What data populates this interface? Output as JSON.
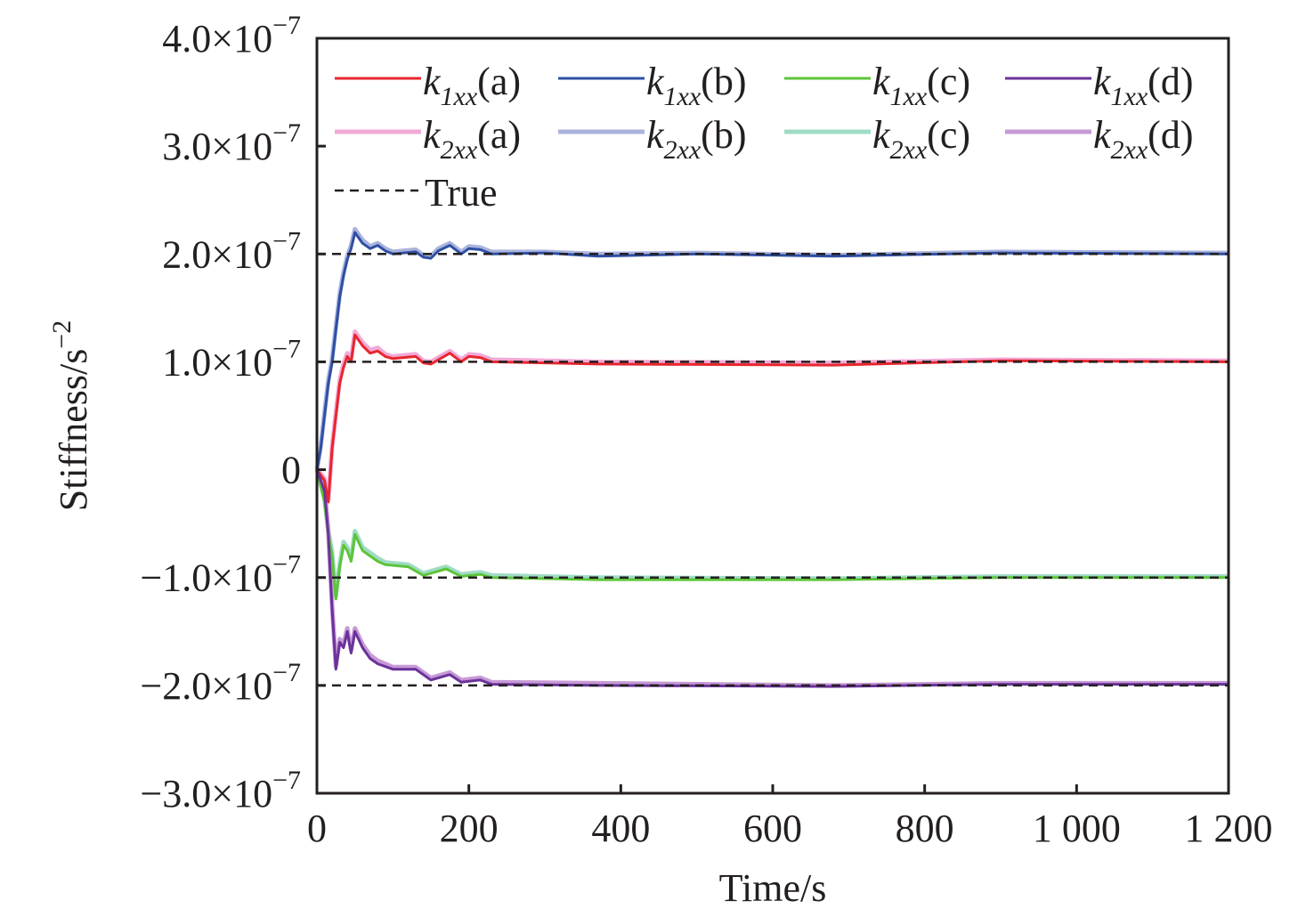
{
  "chart_data": {
    "type": "line",
    "xlabel": "Time/s",
    "ylabel": {
      "text": "Stiffness/s",
      "sup": "−2"
    },
    "xlim": [
      0,
      1200
    ],
    "ylim": [
      -3e-07,
      4e-07
    ],
    "grid": false,
    "legend_placement": "top",
    "x_ticks": [
      {
        "value": 0,
        "label": "0"
      },
      {
        "value": 200,
        "label": "200"
      },
      {
        "value": 400,
        "label": "400"
      },
      {
        "value": 600,
        "label": "600"
      },
      {
        "value": 800,
        "label": "800"
      },
      {
        "value": 1000,
        "label": "1 000"
      },
      {
        "value": 1200,
        "label": "1 200"
      }
    ],
    "y_ticks": [
      {
        "value": 4e-07,
        "mantissa": "4.0×10",
        "exp": "−7"
      },
      {
        "value": 3e-07,
        "mantissa": "3.0×10",
        "exp": "−7"
      },
      {
        "value": 2e-07,
        "mantissa": "2.0×10",
        "exp": "−7"
      },
      {
        "value": 1e-07,
        "mantissa": "1.0×10",
        "exp": "−7"
      },
      {
        "value": 0,
        "mantissa": "0",
        "exp": ""
      },
      {
        "value": -1e-07,
        "mantissa": "−1.0×10",
        "exp": "−7"
      },
      {
        "value": -2e-07,
        "mantissa": "−2.0×10",
        "exp": "−7"
      },
      {
        "value": -3e-07,
        "mantissa": "−3.0×10",
        "exp": "−7"
      }
    ],
    "series": [
      {
        "name": "k1xx(a)",
        "label": {
          "k": "k",
          "sub": "1xx",
          "arg": "(a)"
        },
        "color": "#e8262e",
        "width": 3,
        "x": [
          0,
          10,
          15,
          20,
          25,
          30,
          35,
          40,
          45,
          50,
          55,
          60,
          70,
          80,
          90,
          100,
          130,
          140,
          150,
          175,
          190,
          200,
          215,
          230,
          370,
          680,
          900,
          1200
        ],
        "y": [
          0,
          -1e-08,
          -3e-08,
          2e-08,
          5e-08,
          8e-08,
          9.5e-08,
          1.05e-07,
          1e-07,
          1.25e-07,
          1.2e-07,
          1.15e-07,
          1.08e-07,
          1.1e-07,
          1.05e-07,
          1.03e-07,
          1.05e-07,
          9.9e-08,
          9.8e-08,
          1.08e-07,
          1e-07,
          1.05e-07,
          1.04e-07,
          1e-07,
          9.8e-08,
          9.7e-08,
          1.01e-07,
          1e-07
        ]
      },
      {
        "name": "k1xx(b)",
        "label": {
          "k": "k",
          "sub": "1xx",
          "arg": "(b)"
        },
        "color": "#2e4fa3",
        "width": 3,
        "x": [
          0,
          5,
          10,
          15,
          20,
          25,
          30,
          35,
          40,
          45,
          50,
          55,
          60,
          70,
          80,
          90,
          100,
          130,
          140,
          150,
          160,
          175,
          190,
          200,
          215,
          230,
          300,
          370,
          500,
          680,
          900,
          1200
        ],
        "y": [
          0,
          2e-08,
          5e-08,
          8e-08,
          1e-07,
          1.3e-07,
          1.6e-07,
          1.8e-07,
          1.95e-07,
          2.05e-07,
          2.2e-07,
          2.15e-07,
          2.1e-07,
          2.05e-07,
          2.08e-07,
          2.03e-07,
          2e-07,
          2.02e-07,
          1.97e-07,
          1.96e-07,
          2.03e-07,
          2.08e-07,
          2e-07,
          2.05e-07,
          2.04e-07,
          2e-07,
          2.01e-07,
          1.98e-07,
          2e-07,
          1.98e-07,
          2.01e-07,
          2e-07
        ]
      },
      {
        "name": "k1xx(c)",
        "label": {
          "k": "k",
          "sub": "1xx",
          "arg": "(c)"
        },
        "color": "#5ec43a",
        "width": 3,
        "x": [
          0,
          10,
          15,
          20,
          25,
          30,
          35,
          40,
          45,
          50,
          60,
          70,
          80,
          90,
          120,
          140,
          170,
          190,
          215,
          230,
          370,
          680,
          900,
          1200
        ],
        "y": [
          0,
          -3e-08,
          -6e-08,
          -8e-08,
          -1.2e-07,
          -9e-08,
          -7e-08,
          -7.5e-08,
          -8.5e-08,
          -6e-08,
          -7.5e-08,
          -8e-08,
          -8.5e-08,
          -8.8e-08,
          -9e-08,
          -9.8e-08,
          -9.2e-08,
          -9.9e-08,
          -9.7e-08,
          -1e-07,
          -1.02e-07,
          -1.02e-07,
          -1e-07,
          -1e-07
        ]
      },
      {
        "name": "k1xx(d)",
        "label": {
          "k": "k",
          "sub": "1xx",
          "arg": "(d)"
        },
        "color": "#6a3399",
        "width": 3,
        "x": [
          0,
          10,
          15,
          20,
          25,
          30,
          35,
          40,
          45,
          50,
          60,
          70,
          80,
          100,
          130,
          150,
          175,
          190,
          215,
          230,
          370,
          680,
          900,
          1200
        ],
        "y": [
          0,
          -2e-08,
          -6e-08,
          -1.3e-07,
          -1.85e-07,
          -1.6e-07,
          -1.65e-07,
          -1.5e-07,
          -1.7e-07,
          -1.5e-07,
          -1.65e-07,
          -1.75e-07,
          -1.8e-07,
          -1.85e-07,
          -1.85e-07,
          -1.95e-07,
          -1.9e-07,
          -1.97e-07,
          -1.95e-07,
          -1.99e-07,
          -2e-07,
          -2.01e-07,
          -1.99e-07,
          -1.99e-07
        ]
      },
      {
        "name": "k2xx(a)",
        "label": {
          "k": "k",
          "sub": "2xx",
          "arg": "(a)"
        },
        "color": "#f2a9d6",
        "width": 5,
        "x": [
          0,
          10,
          15,
          20,
          25,
          30,
          35,
          40,
          45,
          50,
          55,
          60,
          70,
          80,
          90,
          100,
          130,
          140,
          150,
          175,
          190,
          200,
          215,
          230,
          370,
          680,
          900,
          1200
        ],
        "y": [
          0,
          -8e-09,
          -2.8e-08,
          2.2e-08,
          5.3e-08,
          8.3e-08,
          9.8e-08,
          1.08e-07,
          1.03e-07,
          1.28e-07,
          1.23e-07,
          1.18e-07,
          1.11e-07,
          1.13e-07,
          1.07e-07,
          1.05e-07,
          1.07e-07,
          1.01e-07,
          1e-07,
          1.1e-07,
          1.02e-07,
          1.07e-07,
          1.06e-07,
          1.02e-07,
          1e-07,
          9.9e-08,
          1.02e-07,
          1.01e-07
        ]
      },
      {
        "name": "k2xx(b)",
        "label": {
          "k": "k",
          "sub": "2xx",
          "arg": "(b)"
        },
        "color": "#aab3dd",
        "width": 5,
        "x": [
          0,
          5,
          10,
          15,
          20,
          25,
          30,
          35,
          40,
          45,
          50,
          55,
          60,
          70,
          80,
          90,
          100,
          130,
          140,
          150,
          160,
          175,
          190,
          200,
          215,
          230,
          300,
          370,
          500,
          680,
          900,
          1200
        ],
        "y": [
          0,
          2.2e-08,
          5.3e-08,
          8.3e-08,
          1.03e-07,
          1.33e-07,
          1.63e-07,
          1.83e-07,
          1.98e-07,
          2.08e-07,
          2.23e-07,
          2.18e-07,
          2.13e-07,
          2.07e-07,
          2.1e-07,
          2.05e-07,
          2.02e-07,
          2.04e-07,
          1.99e-07,
          1.98e-07,
          2.05e-07,
          2.1e-07,
          2.02e-07,
          2.07e-07,
          2.06e-07,
          2.02e-07,
          2.02e-07,
          2e-07,
          2.01e-07,
          1.99e-07,
          2.02e-07,
          2.01e-07
        ]
      },
      {
        "name": "k2xx(c)",
        "label": {
          "k": "k",
          "sub": "2xx",
          "arg": "(c)"
        },
        "color": "#9fdcc4",
        "width": 5,
        "x": [
          0,
          10,
          15,
          20,
          25,
          30,
          35,
          40,
          45,
          50,
          60,
          70,
          80,
          90,
          120,
          140,
          170,
          190,
          215,
          230,
          370,
          680,
          900,
          1200
        ],
        "y": [
          0,
          -2.7e-08,
          -5.7e-08,
          -7.7e-08,
          -1.17e-07,
          -8.7e-08,
          -6.7e-08,
          -7.2e-08,
          -8.2e-08,
          -5.7e-08,
          -7.2e-08,
          -7.7e-08,
          -8.2e-08,
          -8.6e-08,
          -8.8e-08,
          -9.6e-08,
          -9e-08,
          -9.7e-08,
          -9.5e-08,
          -9.8e-08,
          -1e-07,
          -1.01e-07,
          -9.9e-08,
          -9.9e-08
        ]
      },
      {
        "name": "k2xx(d)",
        "label": {
          "k": "k",
          "sub": "2xx",
          "arg": "(d)"
        },
        "color": "#c79ad6",
        "width": 5,
        "x": [
          0,
          10,
          15,
          20,
          25,
          30,
          35,
          40,
          45,
          50,
          60,
          70,
          80,
          100,
          130,
          150,
          175,
          190,
          215,
          230,
          370,
          680,
          900,
          1200
        ],
        "y": [
          0,
          -1.7e-08,
          -5.7e-08,
          -1.27e-07,
          -1.82e-07,
          -1.57e-07,
          -1.62e-07,
          -1.47e-07,
          -1.67e-07,
          -1.47e-07,
          -1.62e-07,
          -1.72e-07,
          -1.77e-07,
          -1.83e-07,
          -1.83e-07,
          -1.93e-07,
          -1.88e-07,
          -1.95e-07,
          -1.93e-07,
          -1.97e-07,
          -1.98e-07,
          -2e-07,
          -1.98e-07,
          -1.98e-07
        ]
      }
    ],
    "reference": {
      "name": "True",
      "label": "True",
      "color": "#231f20",
      "style": "dashed",
      "values": [
        2e-07,
        1e-07,
        -1e-07,
        -2e-07
      ]
    }
  }
}
